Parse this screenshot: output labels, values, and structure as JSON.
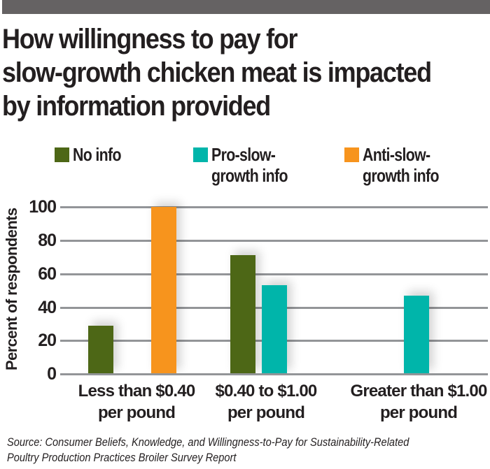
{
  "header": {
    "bar_color": "#656263",
    "title_lines": [
      "How willingness to pay for",
      "slow-growth chicken meat is impacted",
      "by information provided"
    ]
  },
  "legend": [
    {
      "lines": [
        "No info"
      ],
      "color": "#4d6716"
    },
    {
      "lines": [
        "Pro-slow-",
        "growth info"
      ],
      "color": "#00b5aa"
    },
    {
      "lines": [
        "Anti-slow-",
        "growth info"
      ],
      "color": "#f7941d"
    }
  ],
  "axis": {
    "ylabel": "Percent of respondents",
    "yticks": [
      "100",
      "80",
      "60",
      "40",
      "20",
      "0"
    ]
  },
  "categories": [
    {
      "lines": [
        "Less than $0.40",
        "per pound"
      ]
    },
    {
      "lines": [
        "$0.40 to $1.00",
        "per pound"
      ]
    },
    {
      "lines": [
        "Greater than $1.00",
        "per pound"
      ]
    }
  ],
  "source": {
    "lines": [
      "Source: Consumer Beliefs, Knowledge, and Willingness-to-Pay for Sustainability-Related",
      "Poultry Production Practices Broiler Survey Report"
    ]
  },
  "chart_data": {
    "type": "bar",
    "title": "How willingness to pay for slow-growth chicken meat is impacted by information provided",
    "xlabel": "",
    "ylabel": "Percent of respondents",
    "ylim": [
      0,
      100
    ],
    "yticks": [
      0,
      20,
      40,
      60,
      80,
      100
    ],
    "grid": true,
    "legend_position": "top",
    "categories": [
      "Less than $0.40 per pound",
      "$0.40 to $1.00 per pound",
      "Greater than $1.00 per pound"
    ],
    "series": [
      {
        "name": "No info",
        "color": "#4d6716",
        "values": [
          29,
          71,
          0
        ]
      },
      {
        "name": "Pro-slow-growth info",
        "color": "#00b5aa",
        "values": [
          0,
          53,
          47
        ]
      },
      {
        "name": "Anti-slow-growth info",
        "color": "#f7941d",
        "values": [
          100,
          0,
          0
        ]
      }
    ],
    "annotations": [
      "Source: Consumer Beliefs, Knowledge, and Willingness-to-Pay for Sustainability-Related Poultry Production Practices Broiler Survey Report"
    ]
  }
}
